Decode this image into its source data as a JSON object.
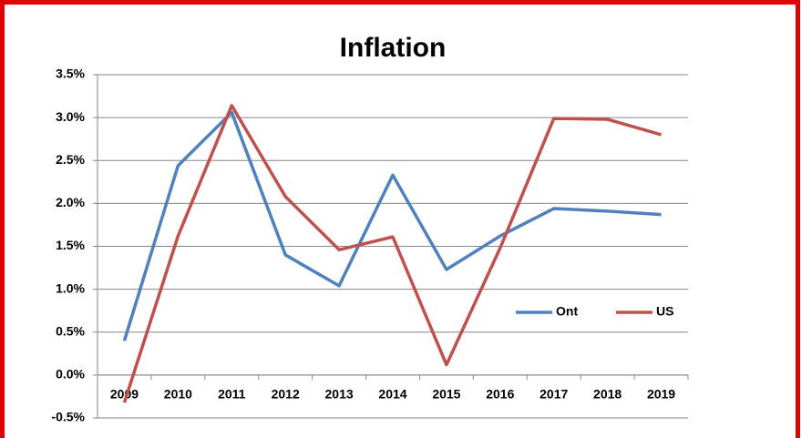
{
  "chart_data": {
    "type": "line",
    "title": "Inflation",
    "categories": [
      "2009",
      "2010",
      "2011",
      "2012",
      "2013",
      "2014",
      "2015",
      "2016",
      "2017",
      "2018",
      "2019"
    ],
    "series": [
      {
        "name": "Ont",
        "color": "#4f81bd",
        "values": [
          0.4,
          2.44,
          3.06,
          1.4,
          1.04,
          2.33,
          1.23,
          1.62,
          1.94,
          1.91,
          1.87
        ]
      },
      {
        "name": "US",
        "color": "#c0504d",
        "values": [
          -0.32,
          1.62,
          3.14,
          2.08,
          1.46,
          1.61,
          0.12,
          1.48,
          2.99,
          2.98,
          2.8
        ]
      }
    ],
    "ylim": [
      -0.5,
      3.5
    ],
    "yticks": [
      {
        "value": -0.5,
        "label": "-0.5%"
      },
      {
        "value": 0,
        "label": "0.0%"
      },
      {
        "value": 0.5,
        "label": "0.5%"
      },
      {
        "value": 1,
        "label": "1.0%"
      },
      {
        "value": 1.5,
        "label": "1.5%"
      },
      {
        "value": 2,
        "label": "2.0%"
      },
      {
        "value": 2.5,
        "label": "2.5%"
      },
      {
        "value": 3,
        "label": "3.0%"
      },
      {
        "value": 3.5,
        "label": "3.5%"
      }
    ],
    "grid": true,
    "legend": "right"
  }
}
